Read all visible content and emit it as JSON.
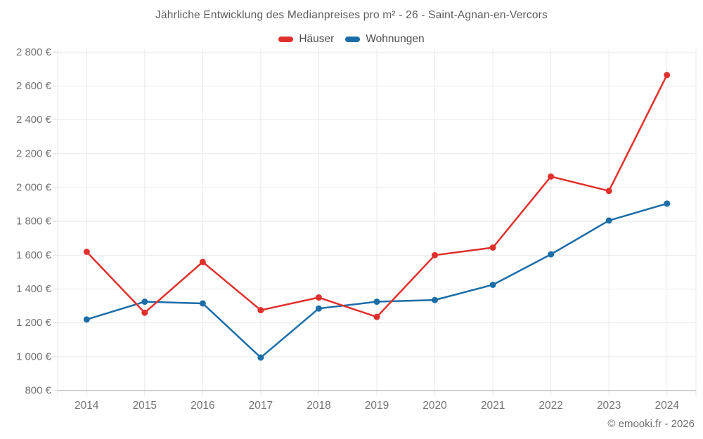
{
  "chart_data": {
    "type": "line",
    "title": "Jährliche Entwicklung des Medianpreises pro m² - 26 - Saint-Agnan-en-Vercors",
    "categories": [
      "2014",
      "2015",
      "2016",
      "2017",
      "2018",
      "2019",
      "2020",
      "2021",
      "2022",
      "2023",
      "2024"
    ],
    "series": [
      {
        "name": "Häuser",
        "color": "#e1302c",
        "values": [
          1620,
          1260,
          1560,
          1275,
          1350,
          1235,
          1600,
          1645,
          2065,
          1980,
          2665
        ]
      },
      {
        "name": "Wohnungen",
        "color": "#1b6da8",
        "values": [
          1220,
          1325,
          1315,
          995,
          1285,
          1325,
          1335,
          1425,
          1605,
          1805,
          1905
        ]
      }
    ],
    "ylim": [
      800,
      2800
    ],
    "y_tick_step": 200,
    "y_tick_suffix": " €",
    "grid": true,
    "legend_position": "top",
    "footer": "© emooki.fr - 2026",
    "colors": {
      "grid": "#e9e9e9",
      "axis_line": "#b5b5b5",
      "tick": "#d6d6d6",
      "axis_label": "#737373"
    }
  }
}
